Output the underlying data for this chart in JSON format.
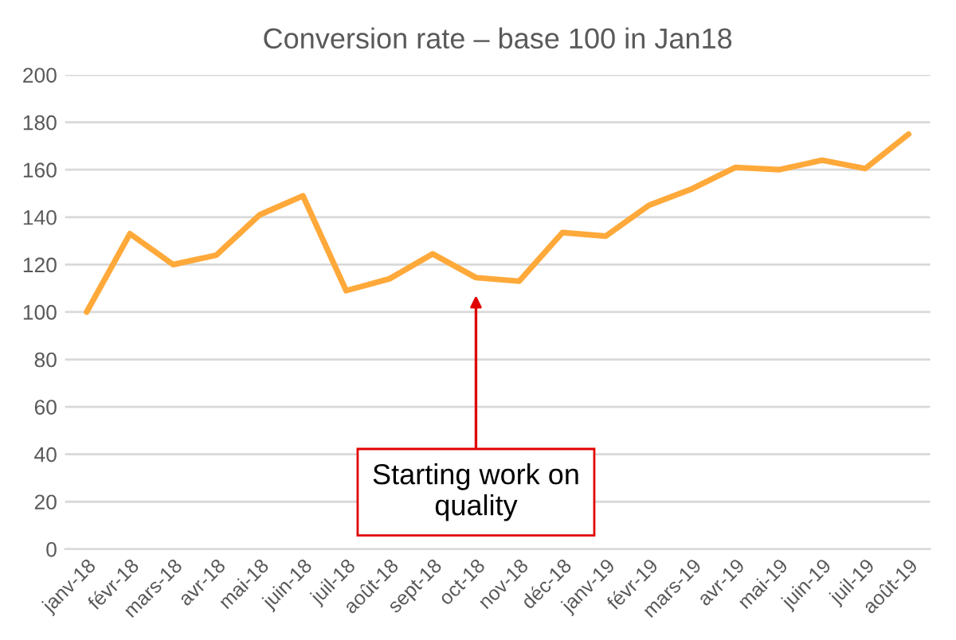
{
  "chart_data": {
    "type": "line",
    "title": "Conversion rate – base 100 in Jan18",
    "categories": [
      "janv-18",
      "févr-18",
      "mars-18",
      "avr-18",
      "mai-18",
      "juin-18",
      "juil-18",
      "août-18",
      "sept-18",
      "oct-18",
      "nov-18",
      "déc-18",
      "janv-19",
      "févr-19",
      "mars-19",
      "avr-19",
      "mai-19",
      "juin-19",
      "juil-19",
      "août-19"
    ],
    "series": [
      {
        "color": "#ffa93a",
        "values": [
          100,
          133,
          120,
          124,
          141,
          149,
          109,
          114,
          124.5,
          114.5,
          113,
          133.5,
          132,
          145,
          152,
          161,
          160,
          164,
          160.5,
          175
        ]
      }
    ],
    "ylim": [
      0,
      200
    ],
    "yticks": [
      0,
      20,
      40,
      60,
      80,
      100,
      120,
      140,
      160,
      180,
      200
    ],
    "grid": "y",
    "marker": "none",
    "line_style": "solid",
    "annotations": [
      "Starting work on quality"
    ]
  }
}
